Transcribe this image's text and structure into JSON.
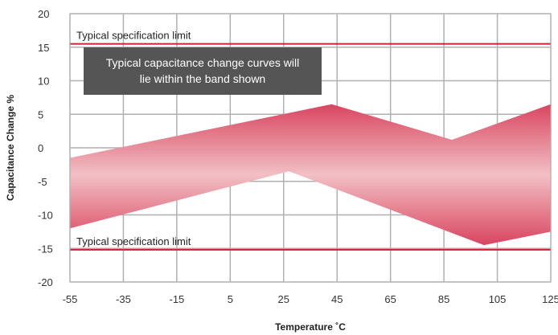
{
  "chart_data": {
    "type": "area",
    "xlabel": "Temperature ˚C",
    "ylabel": "Capacitance Change %",
    "xlim": [
      -55,
      125
    ],
    "ylim": [
      -20,
      20
    ],
    "x_ticks": [
      "-55",
      "-35",
      "-15",
      "5",
      "25",
      "45",
      "65",
      "85",
      "105",
      "125"
    ],
    "y_ticks": [
      "20",
      "15",
      "10",
      "5",
      "0",
      "-5",
      "-10",
      "-15",
      "-20"
    ],
    "grid": true,
    "band": {
      "upper": [
        {
          "x": -55,
          "y": -1.5
        },
        {
          "x": 43,
          "y": 6.5
        },
        {
          "x": 88,
          "y": 1.2
        },
        {
          "x": 125,
          "y": 6.5
        }
      ],
      "lower": [
        {
          "x": -55,
          "y": -12
        },
        {
          "x": 27,
          "y": -3.5
        },
        {
          "x": 100,
          "y": -14.5
        },
        {
          "x": 125,
          "y": -12.5
        }
      ],
      "color": "#d94560"
    },
    "limits": [
      {
        "y": 15.5,
        "label": "Typical specification limit",
        "color": "#d81f2a"
      },
      {
        "y": -15.2,
        "label": "Typical specification limit",
        "color": "#d81f2a"
      }
    ],
    "annotation": {
      "lines": [
        "Typical capacitance change curves will",
        "lie within the band shown"
      ],
      "background": "#555555"
    }
  }
}
